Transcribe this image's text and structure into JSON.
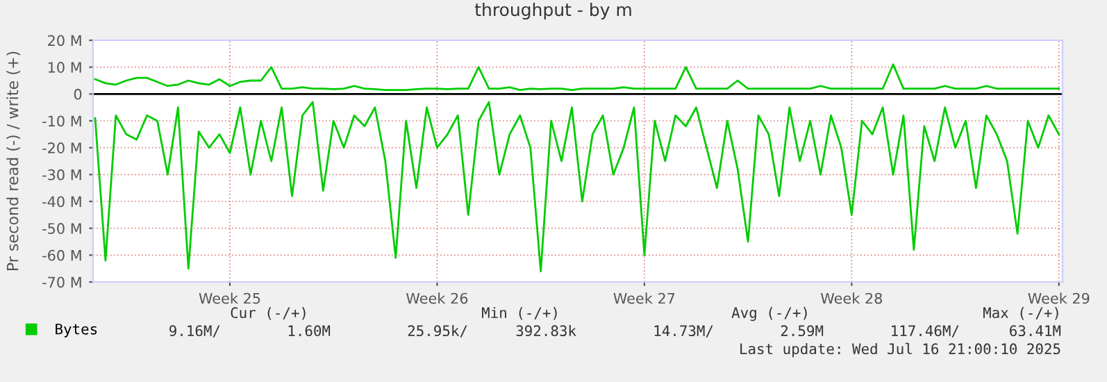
{
  "chart_data": {
    "type": "line",
    "title": "throughput - by m",
    "ylabel": "Pr second read (-) / write (+)",
    "categories": [
      null,
      null,
      null,
      null,
      null,
      null,
      null,
      null,
      null,
      null,
      null,
      null,
      null,
      "Week 25",
      null,
      null,
      null,
      null,
      null,
      null,
      null,
      null,
      null,
      null,
      null,
      null,
      null,
      null,
      null,
      null,
      null,
      null,
      null,
      "Week 26",
      null,
      null,
      null,
      null,
      null,
      null,
      null,
      null,
      null,
      null,
      null,
      null,
      null,
      null,
      null,
      null,
      null,
      null,
      null,
      "Week 27",
      null,
      null,
      null,
      null,
      null,
      null,
      null,
      null,
      null,
      null,
      null,
      null,
      null,
      null,
      null,
      null,
      null,
      null,
      null,
      "Week 28",
      null,
      null,
      null,
      null,
      null,
      null,
      null,
      null,
      null,
      null,
      null,
      null,
      null,
      null,
      null,
      null,
      null,
      null,
      null,
      "Week 29"
    ],
    "series": [
      {
        "name": "Bytes",
        "color": "#00cc00",
        "values": [
          -9,
          -62,
          -8,
          -15,
          -17,
          -8,
          -10,
          -30,
          -5,
          -65,
          -14,
          -20,
          -15,
          -22,
          -5,
          -30,
          -10,
          -25,
          -5,
          -38,
          -8,
          -3,
          -36,
          -10,
          -20,
          -8,
          -12,
          -5,
          -25,
          -61,
          -10,
          -35,
          -5,
          -20,
          -15,
          -8,
          -45,
          -10,
          -3,
          -30,
          -15,
          -8,
          -20,
          -66,
          -10,
          -25,
          -5,
          -40,
          -15,
          -8,
          -30,
          -20,
          -5,
          -60,
          -10,
          -25,
          -8,
          -12,
          -5,
          -20,
          -35,
          -10,
          -28,
          -55,
          -8,
          -15,
          -38,
          -5,
          -25,
          -10,
          -30,
          -8,
          -20,
          -45,
          -10,
          -15,
          -5,
          -30,
          -8,
          -58,
          -12,
          -25,
          -5,
          -20,
          -10,
          -35,
          -8,
          -15,
          -25,
          -52,
          -10,
          -20,
          -8,
          -15
        ]
      },
      {
        "color": "#00cc00",
        "values": [
          5.5,
          4,
          3.5,
          5,
          6,
          6,
          4.5,
          3,
          3.5,
          5,
          4,
          3.5,
          5.5,
          3,
          4.5,
          5,
          5,
          10,
          2,
          2,
          2.5,
          2,
          2,
          1.8,
          2,
          3,
          2,
          1.8,
          1.5,
          1.5,
          1.5,
          1.8,
          2,
          2,
          1.8,
          2,
          2,
          10,
          2,
          2,
          2.5,
          1.5,
          2,
          1.8,
          2,
          2,
          1.5,
          2,
          2,
          2,
          2,
          2.5,
          2,
          2,
          2,
          2,
          2,
          10,
          2,
          2,
          2,
          2,
          5,
          2,
          2,
          2,
          2,
          2,
          2,
          2,
          3,
          2,
          2,
          2,
          2,
          2,
          2,
          11,
          2,
          2,
          2,
          2,
          3,
          2,
          2,
          2,
          3,
          2,
          2,
          2,
          2,
          2,
          2,
          2
        ]
      }
    ],
    "ylim": [
      -70,
      20
    ],
    "yticks": [
      {
        "value": 20,
        "label": "20 M"
      },
      {
        "value": 10,
        "label": "10 M"
      },
      0,
      {
        "value": -10,
        "label": "-10 M"
      },
      {
        "value": -20,
        "label": "-20 M"
      },
      {
        "value": -30,
        "label": "-30 M"
      },
      {
        "value": -40,
        "label": "-40 M"
      },
      {
        "value": -50,
        "label": "-50 M"
      },
      {
        "value": -60,
        "label": "-60 M"
      },
      {
        "value": -70,
        "label": "-70 M"
      }
    ],
    "ref_lines": [
      {
        "axis": "y",
        "value": 0,
        "color": "#000000"
      }
    ],
    "grid": true,
    "legend": "bottom left",
    "annotations": [
      "Cur (-/+)",
      "Min (-/+)",
      "Avg (-/+)",
      "Max (-/+)",
      "9.16M/",
      "1.60M",
      "25.95k/",
      "392.83k",
      "14.73M/",
      "2.59M",
      "117.46M/",
      "63.41M",
      "Last update: Wed Jul 16 21:00:10 2025"
    ]
  }
}
